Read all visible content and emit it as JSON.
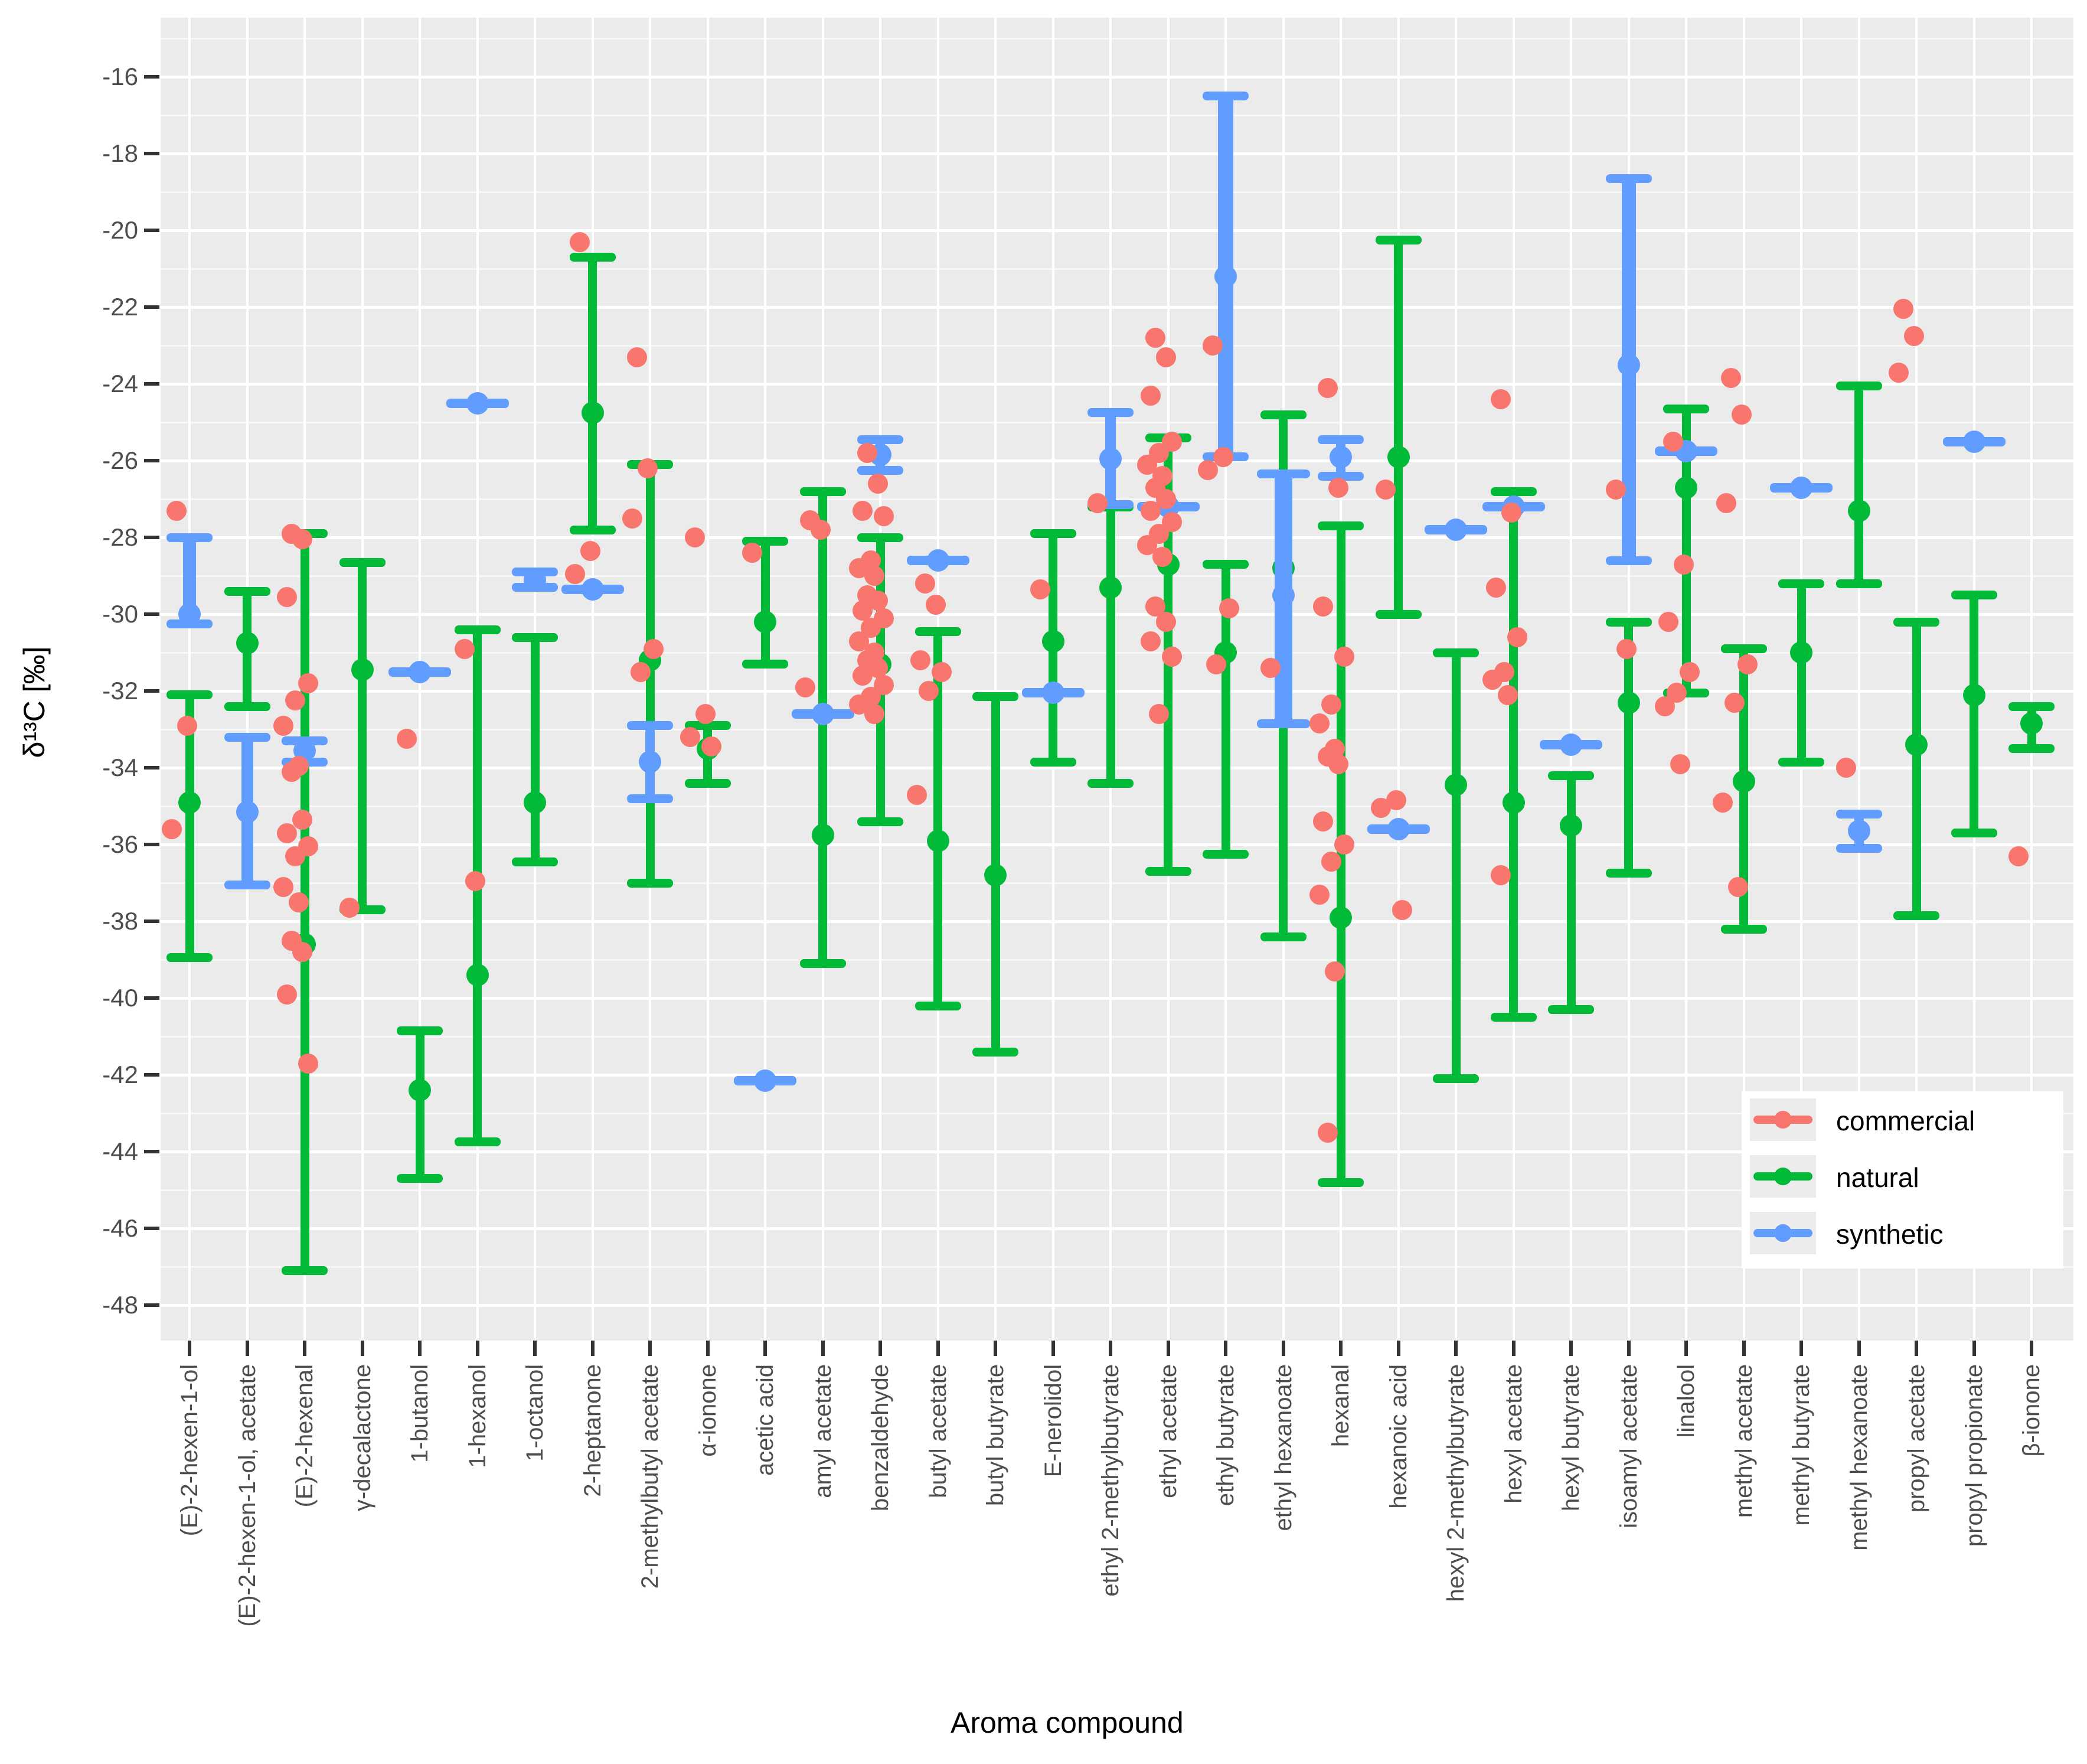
{
  "figure": {
    "x_axis_title": "Aroma compound",
    "y_axis_title": "δ¹³C [‰]"
  },
  "chart_data": {
    "type": "errorbar-scatter",
    "title": "",
    "xlabel": "Aroma compound",
    "ylabel": "δ¹³C [‰]",
    "ylim": [
      -49,
      -14.5
    ],
    "yticks": [
      -16,
      -18,
      -20,
      -22,
      -24,
      -26,
      -28,
      -30,
      -32,
      -34,
      -36,
      -38,
      -40,
      -42,
      -44,
      -46,
      -48
    ],
    "grid": "white-on-gray",
    "legend_position": "inside-bottom-right",
    "panel_background": "#EBEBEB",
    "legend": [
      {
        "label": "commercial",
        "color": "#F8766D"
      },
      {
        "label": "natural",
        "color": "#00BA38"
      },
      {
        "label": "synthetic",
        "color": "#619CFF"
      }
    ],
    "compounds": [
      {
        "name": "(E)-2-hexen-1-ol",
        "natural": {
          "hi": -32.1,
          "mid": -34.9,
          "lo": -38.95
        },
        "synthetic": {
          "hi": -28.0,
          "mid": -30.0,
          "lo": -30.25,
          "w": 22
        },
        "commercial": [
          -27.3,
          -32.9,
          -35.6
        ]
      },
      {
        "name": "(E)-2-hexen-1-ol, acetate",
        "natural": {
          "hi": -29.4,
          "mid": -30.75,
          "lo": -32.4
        },
        "synthetic": {
          "hi": -33.2,
          "mid": -35.15,
          "lo": -37.05,
          "w": 20
        },
        "commercial": []
      },
      {
        "name": "(E)-2-hexenal",
        "natural": {
          "hi": -27.9,
          "mid": -38.6,
          "lo": -47.1
        },
        "synthetic": {
          "hi": -33.3,
          "mid": -33.55,
          "lo": -33.85,
          "w": 16
        },
        "commercial": [
          -27.9,
          -28.05,
          -29.55,
          -31.8,
          -32.25,
          -32.9,
          -33.95,
          -34.1,
          -35.35,
          -35.7,
          -36.05,
          -36.3,
          -37.1,
          -37.5,
          -38.5,
          -38.8,
          -39.9,
          -41.7
        ]
      },
      {
        "name": "γ-decalactone",
        "natural": {
          "hi": -28.65,
          "mid": -31.45,
          "lo": -37.7
        },
        "synthetic": null,
        "commercial": [
          -37.65
        ]
      },
      {
        "name": "1-butanol",
        "natural": {
          "hi": -40.85,
          "mid": -42.4,
          "lo": -44.7
        },
        "synthetic": {
          "hi": -31.4,
          "mid": -31.5,
          "lo": -31.6,
          "w": 16
        },
        "commercial": [
          -33.25
        ]
      },
      {
        "name": "1-hexanol",
        "natural": {
          "hi": -30.4,
          "mid": -39.4,
          "lo": -43.75
        },
        "synthetic": {
          "hi": -24.4,
          "mid": -24.5,
          "lo": -24.6,
          "w": 16
        },
        "commercial": [
          -30.9,
          -36.95
        ]
      },
      {
        "name": "1-octanol",
        "natural": {
          "hi": -30.6,
          "mid": -34.9,
          "lo": -36.45
        },
        "synthetic": {
          "hi": -28.9,
          "mid": -29.1,
          "lo": -29.3,
          "w": 16
        },
        "commercial": []
      },
      {
        "name": "2-heptanone",
        "natural": {
          "hi": -20.7,
          "mid": -24.75,
          "lo": -27.8
        },
        "synthetic": {
          "hi": -29.25,
          "mid": -29.35,
          "lo": -29.45,
          "w": 16
        },
        "commercial": [
          -20.3,
          -28.35,
          -28.95
        ]
      },
      {
        "name": "2-methylbutyl acetate",
        "natural": {
          "hi": -26.1,
          "mid": -31.2,
          "lo": -37.0
        },
        "synthetic": {
          "hi": -32.9,
          "mid": -33.85,
          "lo": -34.8,
          "w": 16
        },
        "commercial": [
          -23.3,
          -26.2,
          -27.5,
          -30.9,
          -31.5
        ]
      },
      {
        "name": "α-ionone",
        "natural": {
          "hi": -32.9,
          "mid": -33.5,
          "lo": -34.4
        },
        "synthetic": null,
        "commercial": [
          -28.0,
          -32.6,
          -33.2,
          -33.45
        ]
      },
      {
        "name": "acetic acid",
        "natural": {
          "hi": -28.1,
          "mid": -30.2,
          "lo": -31.3
        },
        "synthetic": {
          "hi": -42.05,
          "mid": -42.15,
          "lo": -42.25,
          "w": 16
        },
        "commercial": [
          -28.4
        ]
      },
      {
        "name": "amyl acetate",
        "natural": {
          "hi": -26.8,
          "mid": -35.75,
          "lo": -39.1
        },
        "synthetic": {
          "hi": -32.5,
          "mid": -32.6,
          "lo": -32.7,
          "w": 16
        },
        "commercial": [
          -27.55,
          -27.8,
          -31.9
        ]
      },
      {
        "name": "benzaldehyde",
        "natural": {
          "hi": -28.0,
          "mid": -31.3,
          "lo": -35.4
        },
        "synthetic": {
          "hi": -25.45,
          "mid": -25.85,
          "lo": -26.25,
          "w": 16
        },
        "commercial": [
          -25.8,
          -26.6,
          -27.3,
          -27.45,
          -28.6,
          -28.8,
          -29.0,
          -29.5,
          -29.65,
          -29.9,
          -30.1,
          -30.35,
          -30.7,
          -31.0,
          -31.2,
          -31.4,
          -31.6,
          -31.85,
          -32.15,
          -32.35,
          -32.6
        ]
      },
      {
        "name": "butyl acetate",
        "natural": {
          "hi": -30.45,
          "mid": -35.9,
          "lo": -40.2
        },
        "synthetic": {
          "hi": -28.5,
          "mid": -28.6,
          "lo": -28.7,
          "w": 16
        },
        "commercial": [
          -29.2,
          -29.75,
          -31.2,
          -31.5,
          -32.0,
          -34.7
        ]
      },
      {
        "name": "butyl butyrate",
        "natural": {
          "hi": -32.15,
          "mid": -36.8,
          "lo": -41.4
        },
        "synthetic": null,
        "commercial": []
      },
      {
        "name": "E-nerolidol",
        "natural": {
          "hi": -27.9,
          "mid": -30.7,
          "lo": -33.85
        },
        "synthetic": {
          "hi": -31.95,
          "mid": -32.05,
          "lo": -32.15,
          "w": 16
        },
        "commercial": [
          -29.35
        ]
      },
      {
        "name": "ethyl 2-methylbutyrate",
        "natural": {
          "hi": -27.2,
          "mid": -29.3,
          "lo": -34.4
        },
        "synthetic": {
          "hi": -24.75,
          "mid": -25.95,
          "lo": -27.15,
          "w": 18
        },
        "commercial": [
          -27.1
        ]
      },
      {
        "name": "ethyl acetate",
        "natural": {
          "hi": -25.4,
          "mid": -28.7,
          "lo": -36.7
        },
        "synthetic": {
          "hi": -27.1,
          "mid": -27.2,
          "lo": -27.3,
          "w": 16
        },
        "commercial": [
          -22.8,
          -23.3,
          -24.3,
          -25.5,
          -25.8,
          -26.1,
          -26.4,
          -26.7,
          -27.0,
          -27.3,
          -27.6,
          -27.9,
          -28.2,
          -28.5,
          -29.8,
          -30.2,
          -30.7,
          -31.1,
          -32.6
        ]
      },
      {
        "name": "ethyl butyrate",
        "natural": {
          "hi": -28.7,
          "mid": -31.0,
          "lo": -36.25
        },
        "synthetic": {
          "hi": -16.5,
          "mid": -21.2,
          "lo": -25.9,
          "w": 26
        },
        "commercial": [
          -23.0,
          -25.9,
          -26.25,
          -29.85,
          -31.3
        ]
      },
      {
        "name": "ethyl hexanoate",
        "natural": {
          "hi": -24.8,
          "mid": -28.8,
          "lo": -38.4
        },
        "synthetic": {
          "hi": -26.35,
          "mid": -29.5,
          "lo": -32.85,
          "w": 30
        },
        "commercial": [
          -31.4
        ]
      },
      {
        "name": "hexanal",
        "natural": {
          "hi": -27.7,
          "mid": -37.9,
          "lo": -44.8
        },
        "synthetic": {
          "hi": -25.45,
          "mid": -25.9,
          "lo": -26.4,
          "w": 16
        },
        "commercial": [
          -24.1,
          -26.7,
          -29.8,
          -31.1,
          -32.35,
          -32.85,
          -33.5,
          -33.7,
          -33.9,
          -35.4,
          -36.0,
          -36.45,
          -37.3,
          -39.3,
          -43.5
        ]
      },
      {
        "name": "hexanoic acid",
        "natural": {
          "hi": -20.25,
          "mid": -25.9,
          "lo": -30.0
        },
        "synthetic": {
          "hi": -35.5,
          "mid": -35.6,
          "lo": -35.7,
          "w": 16
        },
        "commercial": [
          -26.75,
          -34.85,
          -35.05,
          -37.7
        ]
      },
      {
        "name": "hexyl 2-methylbutyrate",
        "natural": {
          "hi": -31.0,
          "mid": -34.45,
          "lo": -42.1
        },
        "synthetic": {
          "hi": -27.7,
          "mid": -27.8,
          "lo": -27.9,
          "w": 16
        },
        "commercial": []
      },
      {
        "name": "hexyl acetate",
        "natural": {
          "hi": -26.8,
          "mid": -34.9,
          "lo": -40.5
        },
        "synthetic": {
          "hi": -27.1,
          "mid": -27.2,
          "lo": -27.3,
          "w": 16
        },
        "commercial": [
          -24.4,
          -27.35,
          -29.3,
          -30.6,
          -31.5,
          -31.7,
          -32.1,
          -36.8
        ]
      },
      {
        "name": "hexyl butyrate",
        "natural": {
          "hi": -34.2,
          "mid": -35.5,
          "lo": -40.3
        },
        "synthetic": {
          "hi": -33.3,
          "mid": -33.4,
          "lo": -33.5,
          "w": 16
        },
        "commercial": []
      },
      {
        "name": "isoamyl acetate",
        "natural": {
          "hi": -30.2,
          "mid": -32.3,
          "lo": -36.75
        },
        "synthetic": {
          "hi": -18.65,
          "mid": -23.5,
          "lo": -28.6,
          "w": 24
        },
        "commercial": [
          -26.75,
          -30.9
        ]
      },
      {
        "name": "linalool",
        "natural": {
          "hi": -24.65,
          "mid": -26.7,
          "lo": -32.05
        },
        "synthetic": {
          "hi": -25.65,
          "mid": -25.75,
          "lo": -25.85,
          "w": 16
        },
        "commercial": [
          -25.5,
          -28.7,
          -30.2,
          -31.5,
          -32.05,
          -32.4,
          -33.9
        ]
      },
      {
        "name": "methyl acetate",
        "natural": {
          "hi": -30.9,
          "mid": -34.35,
          "lo": -38.2
        },
        "synthetic": null,
        "commercial": [
          -23.85,
          -24.8,
          -27.1,
          -31.3,
          -32.3,
          -34.9,
          -37.1
        ]
      },
      {
        "name": "methyl butyrate",
        "natural": {
          "hi": -29.2,
          "mid": -31.0,
          "lo": -33.85
        },
        "synthetic": {
          "hi": -26.6,
          "mid": -26.7,
          "lo": -26.8,
          "w": 16
        },
        "commercial": []
      },
      {
        "name": "methyl hexanoate",
        "natural": {
          "hi": -24.05,
          "mid": -27.3,
          "lo": -29.2
        },
        "synthetic": {
          "hi": -35.2,
          "mid": -35.65,
          "lo": -36.1,
          "w": 16
        },
        "commercial": [
          -34.0
        ]
      },
      {
        "name": "propyl acetate",
        "natural": {
          "hi": -30.2,
          "mid": -33.4,
          "lo": -37.85
        },
        "synthetic": null,
        "commercial": [
          -22.05,
          -22.75,
          -23.7
        ]
      },
      {
        "name": "propyl propionate",
        "natural": {
          "hi": -29.5,
          "mid": -32.1,
          "lo": -35.7
        },
        "synthetic": {
          "hi": -25.4,
          "mid": -25.5,
          "lo": -25.6,
          "w": 16
        },
        "commercial": []
      },
      {
        "name": "β-ionone",
        "natural": {
          "hi": -32.4,
          "mid": -32.85,
          "lo": -33.5
        },
        "synthetic": null,
        "commercial": [
          -36.3
        ]
      }
    ]
  }
}
